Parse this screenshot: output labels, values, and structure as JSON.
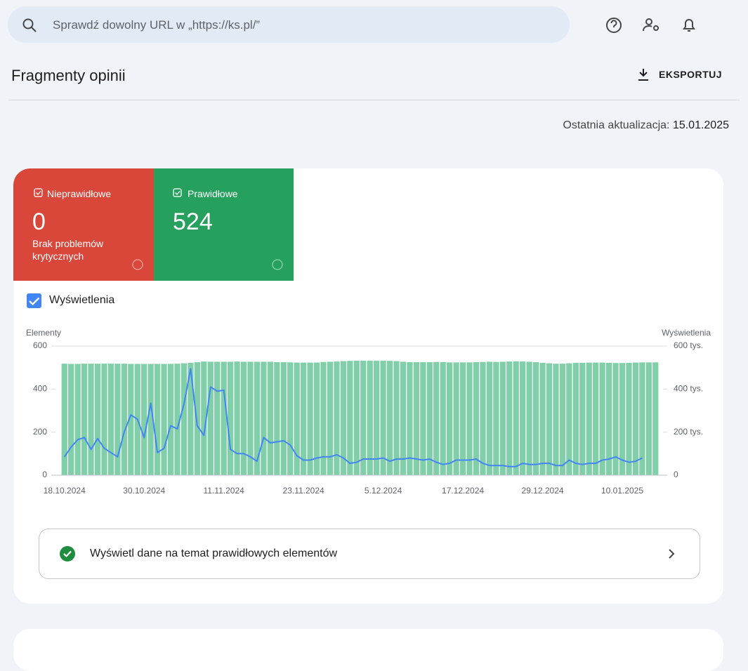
{
  "search": {
    "placeholder": "Sprawdź dowolny URL w „https://ks.pl/”"
  },
  "header": {
    "title": "Fragmenty opinii",
    "export": "EKSPORTUJ"
  },
  "update": {
    "label": "Ostatnia aktualizacja:",
    "date": "15.01.2025"
  },
  "cards": [
    {
      "label": "Nieprawidłowe",
      "value": 0,
      "note": "Brak problemów krytycznych",
      "color": "#d9473b"
    },
    {
      "label": "Prawidłowe",
      "value": 524,
      "color": "#25a05d"
    }
  ],
  "link": {
    "text": "Wyświetl dane na temat prawidłowych elementów"
  },
  "chart_data": {
    "type": "bar",
    "categories": [
      "18.10.2024",
      null,
      null,
      null,
      null,
      null,
      null,
      null,
      null,
      null,
      null,
      null,
      "30.10.2024",
      null,
      null,
      null,
      null,
      null,
      null,
      null,
      null,
      null,
      null,
      null,
      "11.11.2024",
      null,
      null,
      null,
      null,
      null,
      null,
      null,
      null,
      null,
      null,
      null,
      "23.11.2024",
      null,
      null,
      null,
      null,
      null,
      null,
      null,
      null,
      null,
      null,
      null,
      "5.12.2024",
      null,
      null,
      null,
      null,
      null,
      null,
      null,
      null,
      null,
      null,
      null,
      "17.12.2024",
      null,
      null,
      null,
      null,
      null,
      null,
      null,
      null,
      null,
      null,
      null,
      "29.12.2024",
      null,
      null,
      null,
      null,
      null,
      null,
      null,
      null,
      null,
      null,
      null,
      "10.01.2025",
      null,
      null,
      null,
      null,
      null
    ],
    "series": [
      {
        "name": "Elementy",
        "color": "#81cfa9",
        "values": [
          518,
          517,
          517,
          518,
          518,
          518,
          518,
          518,
          518,
          518,
          517,
          517,
          517,
          517,
          517,
          517,
          517,
          518,
          520,
          522,
          525,
          528,
          527,
          527,
          527,
          527,
          528,
          527,
          527,
          527,
          527,
          527,
          525,
          525,
          524,
          523,
          523,
          523,
          523,
          526,
          527,
          528,
          530,
          531,
          532,
          532,
          532,
          532,
          532,
          531,
          530,
          527,
          525,
          525,
          525,
          525,
          526,
          525,
          524,
          524,
          524,
          524,
          525,
          526,
          527,
          526,
          527,
          528,
          529,
          528,
          527,
          525,
          522,
          520,
          518,
          518,
          520,
          522,
          522,
          523,
          523,
          523,
          522,
          521,
          521,
          522,
          523,
          524,
          524,
          524
        ]
      },
      {
        "name": "Wyświetlenia",
        "type": "line",
        "axis": "y2",
        "color": "#4285f4",
        "checked": true,
        "values": [
          85000,
          130000,
          165000,
          175000,
          120000,
          170000,
          125000,
          105000,
          85000,
          200000,
          280000,
          260000,
          175000,
          335000,
          105000,
          125000,
          230000,
          215000,
          330000,
          495000,
          230000,
          185000,
          410000,
          390000,
          395000,
          120000,
          100000,
          100000,
          85000,
          65000,
          175000,
          150000,
          155000,
          160000,
          140000,
          90000,
          70000,
          70000,
          80000,
          85000,
          85000,
          95000,
          80000,
          55000,
          60000,
          75000,
          75000,
          75000,
          80000,
          65000,
          75000,
          75000,
          80000,
          75000,
          70000,
          75000,
          60000,
          50000,
          55000,
          70000,
          70000,
          70000,
          75000,
          55000,
          45000,
          45000,
          45000,
          40000,
          40000,
          55000,
          50000,
          50000,
          55000,
          55000,
          45000,
          45000,
          70000,
          55000,
          50000,
          55000,
          55000,
          70000,
          75000,
          85000,
          70000,
          60000,
          65000,
          80000,
          null,
          null
        ]
      }
    ],
    "ylim": [
      0,
      600
    ],
    "yticks": [
      0,
      200,
      400,
      600
    ],
    "y2lim": [
      0,
      600000
    ],
    "y2ticks": [
      0,
      {
        "value": 200000,
        "label": "200 tys."
      },
      {
        "value": 400000,
        "label": "400 tys."
      },
      {
        "value": 600000,
        "label": "600 tys."
      }
    ]
  }
}
